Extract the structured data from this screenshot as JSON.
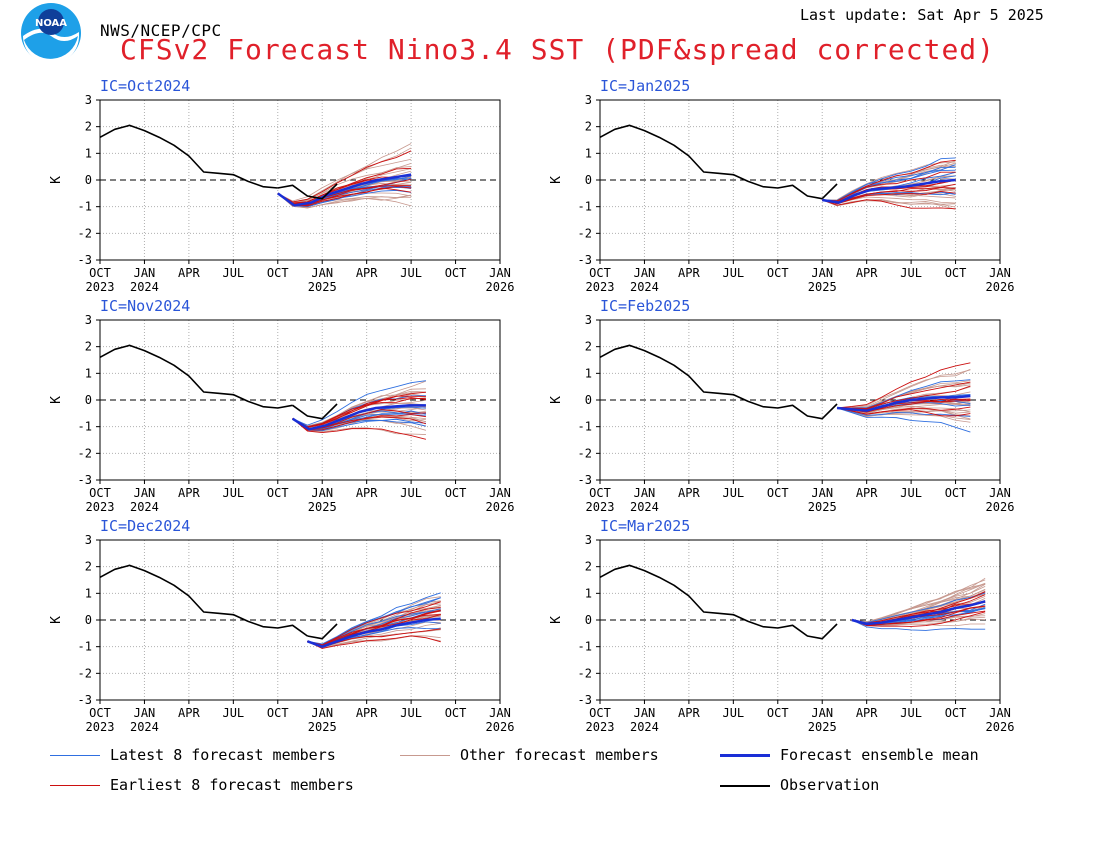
{
  "header": {
    "agency": "NWS/NCEP/CPC",
    "last_update": "Last update: Sat Apr 5 2025",
    "title": "CFSv2 Forecast Nino3.4 SST (PDF&spread corrected)",
    "logo_text": "NOAA"
  },
  "colors": {
    "title": "#e0202a",
    "ic_label": "#2a55d8",
    "latest": "#2f6fe0",
    "other": "#c7998f",
    "earliest": "#cc1010",
    "mean": "#1a2fd6",
    "observation": "#000000",
    "grid": "#b0b0b0"
  },
  "legend": {
    "latest": "Latest 8 forecast members",
    "other": "Other forecast members",
    "mean": "Forecast ensemble mean",
    "earliest": "Earliest 8 forecast members",
    "observation": "Observation"
  },
  "chart_data": [
    {
      "type": "line",
      "panel": "IC=Oct2024",
      "ylabel": "K",
      "ylim": [
        -3,
        3
      ],
      "grid": true,
      "x_ticks": [
        "OCT",
        "JAN",
        "APR",
        "JUL",
        "OCT",
        "JAN",
        "APR",
        "JUL",
        "OCT",
        "JAN"
      ],
      "x_years": [
        "2023",
        "2024",
        "",
        "",
        "",
        "2025",
        "",
        "",
        "",
        "2026"
      ],
      "y_ticks": [
        -3,
        -2,
        -1,
        0,
        1,
        2,
        3
      ],
      "observation": [
        1.6,
        1.9,
        2.05,
        1.85,
        1.6,
        1.3,
        0.9,
        0.3,
        0.25,
        0.2,
        -0.05,
        -0.25,
        -0.3,
        -0.2,
        -0.6,
        -0.7,
        -0.15
      ],
      "forecast_start_month": 12,
      "forecast_end_month": 21,
      "ensemble_mean": [
        -0.5,
        -0.95,
        -0.85,
        -0.55,
        -0.35,
        -0.15,
        0.0,
        0.1,
        0.2
      ]
    },
    {
      "type": "line",
      "panel": "IC=Jan2025",
      "ylabel": "K",
      "ylim": [
        -3,
        3
      ],
      "grid": true,
      "x_ticks": [
        "OCT",
        "JAN",
        "APR",
        "JUL",
        "OCT",
        "JAN",
        "APR",
        "JUL",
        "OCT",
        "JAN"
      ],
      "x_years": [
        "2023",
        "2024",
        "",
        "",
        "",
        "2025",
        "",
        "",
        "",
        "2026"
      ],
      "y_ticks": [
        -3,
        -2,
        -1,
        0,
        1,
        2,
        3
      ],
      "observation": [
        1.6,
        1.9,
        2.05,
        1.85,
        1.6,
        1.3,
        0.9,
        0.3,
        0.25,
        0.2,
        -0.05,
        -0.25,
        -0.3,
        -0.2,
        -0.6,
        -0.7,
        -0.15
      ],
      "forecast_start_month": 15,
      "forecast_end_month": 24,
      "ensemble_mean": [
        -0.75,
        -0.85,
        -0.55,
        -0.35,
        -0.3,
        -0.25,
        -0.15,
        -0.05,
        0.0
      ]
    },
    {
      "type": "line",
      "panel": "IC=Nov2024",
      "ylabel": "K",
      "ylim": [
        -3,
        3
      ],
      "grid": true,
      "x_ticks": [
        "OCT",
        "JAN",
        "APR",
        "JUL",
        "OCT",
        "JAN",
        "APR",
        "JUL",
        "OCT",
        "JAN"
      ],
      "x_years": [
        "2023",
        "2024",
        "",
        "",
        "",
        "2025",
        "",
        "",
        "",
        "2026"
      ],
      "y_ticks": [
        -3,
        -2,
        -1,
        0,
        1,
        2,
        3
      ],
      "observation": [
        1.6,
        1.9,
        2.05,
        1.85,
        1.6,
        1.3,
        0.9,
        0.3,
        0.25,
        0.2,
        -0.05,
        -0.25,
        -0.3,
        -0.2,
        -0.6,
        -0.7,
        -0.15
      ],
      "forecast_start_month": 13,
      "forecast_end_month": 22,
      "ensemble_mean": [
        -0.7,
        -1.1,
        -0.95,
        -0.7,
        -0.45,
        -0.3,
        -0.25,
        -0.2,
        -0.2
      ]
    },
    {
      "type": "line",
      "panel": "IC=Feb2025",
      "ylabel": "K",
      "ylim": [
        -3,
        3
      ],
      "grid": true,
      "x_ticks": [
        "OCT",
        "JAN",
        "APR",
        "JUL",
        "OCT",
        "JAN",
        "APR",
        "JUL",
        "OCT",
        "JAN"
      ],
      "x_years": [
        "2023",
        "2024",
        "",
        "",
        "",
        "2025",
        "",
        "",
        "",
        "2026"
      ],
      "y_ticks": [
        -3,
        -2,
        -1,
        0,
        1,
        2,
        3
      ],
      "observation": [
        1.6,
        1.9,
        2.05,
        1.85,
        1.6,
        1.3,
        0.9,
        0.3,
        0.25,
        0.2,
        -0.05,
        -0.25,
        -0.3,
        -0.2,
        -0.6,
        -0.7,
        -0.15
      ],
      "forecast_start_month": 16,
      "forecast_end_month": 25,
      "ensemble_mean": [
        -0.3,
        -0.35,
        -0.4,
        -0.25,
        -0.1,
        0.0,
        0.05,
        0.1,
        0.1,
        0.15
      ]
    },
    {
      "type": "line",
      "panel": "IC=Dec2024",
      "ylabel": "K",
      "ylim": [
        -3,
        3
      ],
      "grid": true,
      "x_ticks": [
        "OCT",
        "JAN",
        "APR",
        "JUL",
        "OCT",
        "JAN",
        "APR",
        "JUL",
        "OCT",
        "JAN"
      ],
      "x_years": [
        "2023",
        "2024",
        "",
        "",
        "",
        "2025",
        "",
        "",
        "",
        "2026"
      ],
      "y_ticks": [
        -3,
        -2,
        -1,
        0,
        1,
        2,
        3
      ],
      "observation": [
        1.6,
        1.9,
        2.05,
        1.85,
        1.6,
        1.3,
        0.9,
        0.3,
        0.25,
        0.2,
        -0.05,
        -0.25,
        -0.3,
        -0.2,
        -0.6,
        -0.7,
        -0.15
      ],
      "forecast_start_month": 14,
      "forecast_end_month": 23,
      "ensemble_mean": [
        -0.8,
        -1.0,
        -0.8,
        -0.6,
        -0.45,
        -0.35,
        -0.2,
        -0.1,
        0.0,
        0.05
      ]
    },
    {
      "type": "line",
      "panel": "IC=Mar2025",
      "ylabel": "K",
      "ylim": [
        -3,
        3
      ],
      "grid": true,
      "x_ticks": [
        "OCT",
        "JAN",
        "APR",
        "JUL",
        "OCT",
        "JAN",
        "APR",
        "JUL",
        "OCT",
        "JAN"
      ],
      "x_years": [
        "2023",
        "2024",
        "",
        "",
        "",
        "2025",
        "",
        "",
        "",
        "2026"
      ],
      "y_ticks": [
        -3,
        -2,
        -1,
        0,
        1,
        2,
        3
      ],
      "observation": [
        1.6,
        1.9,
        2.05,
        1.85,
        1.6,
        1.3,
        0.9,
        0.3,
        0.25,
        0.2,
        -0.05,
        -0.25,
        -0.3,
        -0.2,
        -0.6,
        -0.7,
        -0.15
      ],
      "forecast_start_month": 17,
      "forecast_end_month": 26,
      "ensemble_mean": [
        0.0,
        -0.15,
        -0.1,
        0.0,
        0.1,
        0.2,
        0.3,
        0.45,
        0.55,
        0.7
      ]
    }
  ]
}
